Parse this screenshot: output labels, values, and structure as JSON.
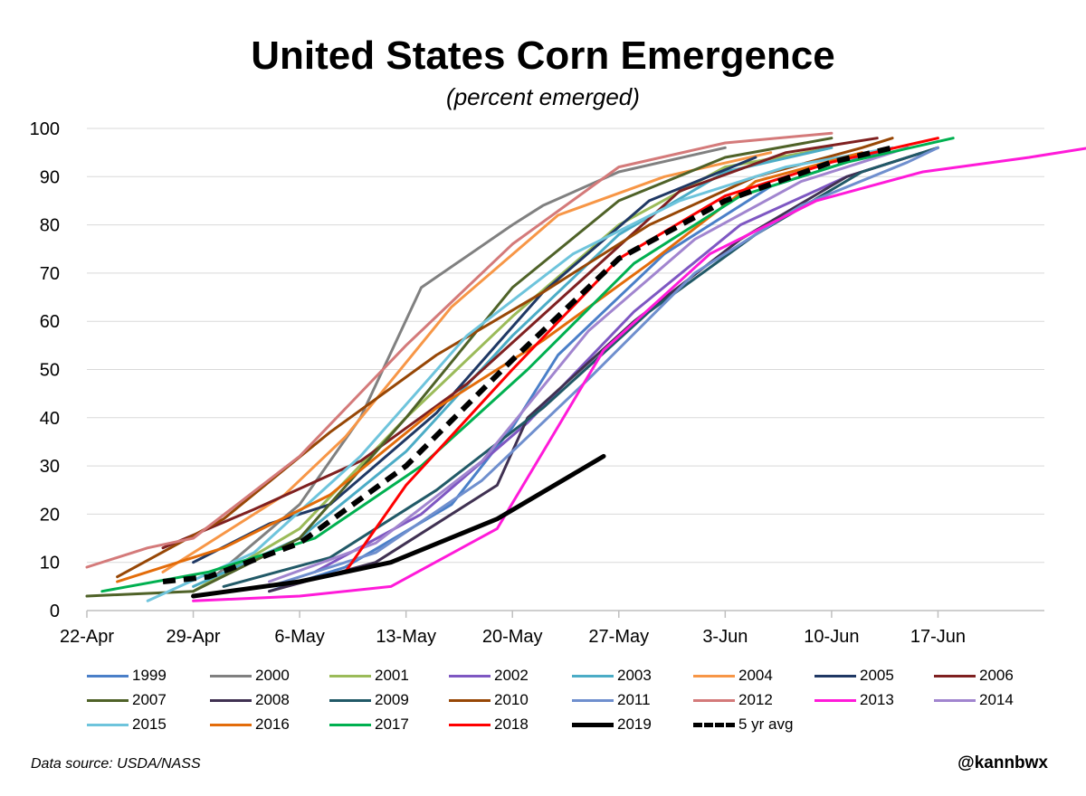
{
  "title": "United States Corn Emergence",
  "subtitle": "(percent emerged)",
  "source_note": "Data source: USDA/NASS",
  "handle": "@kannbwx",
  "chart_data": {
    "type": "line",
    "title": "United States Corn Emergence",
    "subtitle": "(percent emerged)",
    "xlabel": "",
    "ylabel": "",
    "x_axis": "day of year (2019 calendar)",
    "xlim": [
      "2019-04-22",
      "2019-06-24"
    ],
    "x_ticks": [
      "22-Apr",
      "29-Apr",
      "6-May",
      "13-May",
      "20-May",
      "27-May",
      "3-Jun",
      "10-Jun",
      "17-Jun"
    ],
    "ylim": [
      0,
      100
    ],
    "y_ticks": [
      0,
      10,
      20,
      30,
      40,
      50,
      60,
      70,
      80,
      90,
      100
    ],
    "grid": "horizontal",
    "legend_position": "bottom",
    "series": [
      {
        "name": "1999",
        "color": "#4a7fc8",
        "points": [
          [
            "2019-05-04",
            4
          ],
          [
            "2019-05-09",
            9
          ],
          [
            "2019-05-16",
            22
          ],
          [
            "2019-05-20",
            38
          ],
          [
            "2019-05-23",
            53
          ],
          [
            "2019-05-30",
            74
          ],
          [
            "2019-06-06",
            88
          ],
          [
            "2019-06-13",
            95
          ]
        ]
      },
      {
        "name": "2000",
        "color": "#808080",
        "points": [
          [
            "2019-04-30",
            6
          ],
          [
            "2019-05-06",
            22
          ],
          [
            "2019-05-10",
            40
          ],
          [
            "2019-05-14",
            67
          ],
          [
            "2019-05-20",
            80
          ],
          [
            "2019-05-22",
            84
          ],
          [
            "2019-05-27",
            91
          ],
          [
            "2019-06-03",
            96
          ]
        ]
      },
      {
        "name": "2001",
        "color": "#9bbb59",
        "points": [
          [
            "2019-04-29",
            4
          ],
          [
            "2019-05-06",
            17
          ],
          [
            "2019-05-13",
            40
          ],
          [
            "2019-05-20",
            61
          ],
          [
            "2019-05-27",
            80
          ],
          [
            "2019-06-03",
            92
          ],
          [
            "2019-06-10",
            96
          ]
        ]
      },
      {
        "name": "2002",
        "color": "#7e57c2",
        "points": [
          [
            "2019-05-07",
            8
          ],
          [
            "2019-05-14",
            20
          ],
          [
            "2019-05-21",
            39
          ],
          [
            "2019-05-28",
            62
          ],
          [
            "2019-06-04",
            80
          ],
          [
            "2019-06-11",
            90
          ],
          [
            "2019-06-16",
            95
          ]
        ]
      },
      {
        "name": "2003",
        "color": "#4bacc6",
        "points": [
          [
            "2019-04-29",
            5
          ],
          [
            "2019-05-06",
            15
          ],
          [
            "2019-05-13",
            33
          ],
          [
            "2019-05-20",
            57
          ],
          [
            "2019-05-27",
            78
          ],
          [
            "2019-06-03",
            91
          ],
          [
            "2019-06-10",
            96
          ]
        ]
      },
      {
        "name": "2004",
        "color": "#f79646",
        "points": [
          [
            "2019-04-27",
            8
          ],
          [
            "2019-05-05",
            24
          ],
          [
            "2019-05-09",
            36
          ],
          [
            "2019-05-16",
            63
          ],
          [
            "2019-05-23",
            82
          ],
          [
            "2019-05-30",
            90
          ],
          [
            "2019-06-06",
            95
          ]
        ]
      },
      {
        "name": "2005",
        "color": "#1f3864",
        "points": [
          [
            "2019-04-29",
            10
          ],
          [
            "2019-05-04",
            18
          ],
          [
            "2019-05-08",
            22
          ],
          [
            "2019-05-15",
            41
          ],
          [
            "2019-05-22",
            66
          ],
          [
            "2019-05-29",
            85
          ],
          [
            "2019-06-05",
            94
          ]
        ]
      },
      {
        "name": "2006",
        "color": "#7f2020",
        "points": [
          [
            "2019-04-27",
            13
          ],
          [
            "2019-05-03",
            21
          ],
          [
            "2019-05-10",
            31
          ],
          [
            "2019-05-17",
            47
          ],
          [
            "2019-05-24",
            67
          ],
          [
            "2019-05-31",
            87
          ],
          [
            "2019-06-07",
            95
          ],
          [
            "2019-06-13",
            98
          ]
        ]
      },
      {
        "name": "2007",
        "color": "#4f6228",
        "points": [
          [
            "2019-04-22",
            3
          ],
          [
            "2019-04-29",
            4
          ],
          [
            "2019-05-06",
            15
          ],
          [
            "2019-05-13",
            40
          ],
          [
            "2019-05-20",
            67
          ],
          [
            "2019-05-27",
            85
          ],
          [
            "2019-06-03",
            94
          ],
          [
            "2019-06-10",
            98
          ]
        ]
      },
      {
        "name": "2008",
        "color": "#403152",
        "points": [
          [
            "2019-05-04",
            4
          ],
          [
            "2019-05-11",
            10
          ],
          [
            "2019-05-19",
            26
          ],
          [
            "2019-05-21",
            40
          ],
          [
            "2019-05-28",
            60
          ],
          [
            "2019-06-04",
            77
          ],
          [
            "2019-06-11",
            90
          ],
          [
            "2019-06-17",
            96
          ]
        ]
      },
      {
        "name": "2009",
        "color": "#215967",
        "points": [
          [
            "2019-05-01",
            5
          ],
          [
            "2019-05-08",
            11
          ],
          [
            "2019-05-15",
            25
          ],
          [
            "2019-05-22",
            42
          ],
          [
            "2019-05-29",
            62
          ],
          [
            "2019-06-05",
            78
          ],
          [
            "2019-06-12",
            91
          ],
          [
            "2019-06-17",
            96
          ]
        ]
      },
      {
        "name": "2010",
        "color": "#974706",
        "points": [
          [
            "2019-04-24",
            7
          ],
          [
            "2019-05-01",
            19
          ],
          [
            "2019-05-08",
            37
          ],
          [
            "2019-05-15",
            53
          ],
          [
            "2019-05-22",
            66
          ],
          [
            "2019-05-29",
            80
          ],
          [
            "2019-06-05",
            90
          ],
          [
            "2019-06-12",
            96
          ],
          [
            "2019-06-14",
            98
          ]
        ]
      },
      {
        "name": "2011",
        "color": "#6f8fce",
        "points": [
          [
            "2019-05-04",
            5
          ],
          [
            "2019-05-11",
            12
          ],
          [
            "2019-05-18",
            27
          ],
          [
            "2019-05-25",
            48
          ],
          [
            "2019-06-01",
            70
          ],
          [
            "2019-06-08",
            84
          ],
          [
            "2019-06-15",
            93
          ],
          [
            "2019-06-17",
            96
          ]
        ]
      },
      {
        "name": "2012",
        "color": "#d47a7a",
        "points": [
          [
            "2019-04-22",
            9
          ],
          [
            "2019-04-26",
            13
          ],
          [
            "2019-04-29",
            15
          ],
          [
            "2019-05-06",
            32
          ],
          [
            "2019-05-13",
            55
          ],
          [
            "2019-05-20",
            76
          ],
          [
            "2019-05-27",
            92
          ],
          [
            "2019-06-03",
            97
          ],
          [
            "2019-06-10",
            99
          ]
        ]
      },
      {
        "name": "2013",
        "color": "#ff1ad9",
        "points": [
          [
            "2019-04-29",
            2
          ],
          [
            "2019-05-06",
            3
          ],
          [
            "2019-05-12",
            5
          ],
          [
            "2019-05-19",
            17
          ],
          [
            "2019-05-26",
            54
          ],
          [
            "2019-06-02",
            74
          ],
          [
            "2019-06-09",
            85
          ],
          [
            "2019-06-16",
            91
          ],
          [
            "2019-06-23",
            94
          ],
          [
            "2019-06-27",
            96
          ]
        ]
      },
      {
        "name": "2014",
        "color": "#a185cf",
        "points": [
          [
            "2019-05-04",
            6
          ],
          [
            "2019-05-11",
            14
          ],
          [
            "2019-05-18",
            31
          ],
          [
            "2019-05-25",
            58
          ],
          [
            "2019-06-01",
            77
          ],
          [
            "2019-06-08",
            89
          ],
          [
            "2019-06-15",
            96
          ]
        ]
      },
      {
        "name": "2015",
        "color": "#6ec4dc",
        "points": [
          [
            "2019-04-26",
            2
          ],
          [
            "2019-05-03",
            12
          ],
          [
            "2019-05-10",
            32
          ],
          [
            "2019-05-17",
            57
          ],
          [
            "2019-05-24",
            74
          ],
          [
            "2019-05-31",
            85
          ],
          [
            "2019-06-07",
            92
          ],
          [
            "2019-06-14",
            96
          ]
        ]
      },
      {
        "name": "2016",
        "color": "#e36c0a",
        "points": [
          [
            "2019-04-24",
            6
          ],
          [
            "2019-05-01",
            13
          ],
          [
            "2019-05-08",
            24
          ],
          [
            "2019-05-15",
            42
          ],
          [
            "2019-05-22",
            56
          ],
          [
            "2019-05-29",
            72
          ],
          [
            "2019-06-05",
            89
          ],
          [
            "2019-06-12",
            95
          ]
        ]
      },
      {
        "name": "2017",
        "color": "#00b050",
        "points": [
          [
            "2019-04-23",
            4
          ],
          [
            "2019-04-30",
            8
          ],
          [
            "2019-05-07",
            15
          ],
          [
            "2019-05-14",
            30
          ],
          [
            "2019-05-21",
            50
          ],
          [
            "2019-05-28",
            72
          ],
          [
            "2019-06-04",
            86
          ],
          [
            "2019-06-11",
            93
          ],
          [
            "2019-06-18",
            98
          ]
        ]
      },
      {
        "name": "2018",
        "color": "#ff0000",
        "points": [
          [
            "2019-04-29",
            3
          ],
          [
            "2019-05-06",
            6
          ],
          [
            "2019-05-09",
            8
          ],
          [
            "2019-05-13",
            26
          ],
          [
            "2019-05-20",
            50
          ],
          [
            "2019-05-27",
            73
          ],
          [
            "2019-06-03",
            86
          ],
          [
            "2019-06-10",
            93
          ],
          [
            "2019-06-17",
            98
          ]
        ]
      },
      {
        "name": "2019",
        "color": "#000000",
        "points": [
          [
            "2019-04-29",
            3
          ],
          [
            "2019-05-06",
            6
          ],
          [
            "2019-05-12",
            10
          ],
          [
            "2019-05-19",
            19
          ],
          [
            "2019-05-26",
            32
          ]
        ]
      },
      {
        "name": "5 yr avg",
        "color": "#000000",
        "dashed": true,
        "points": [
          [
            "2019-04-27",
            6
          ],
          [
            "2019-04-30",
            7
          ],
          [
            "2019-05-06",
            14
          ],
          [
            "2019-05-13",
            30
          ],
          [
            "2019-05-20",
            52
          ],
          [
            "2019-05-27",
            73
          ],
          [
            "2019-06-03",
            85
          ],
          [
            "2019-06-10",
            93
          ],
          [
            "2019-06-14",
            96
          ]
        ]
      }
    ]
  }
}
